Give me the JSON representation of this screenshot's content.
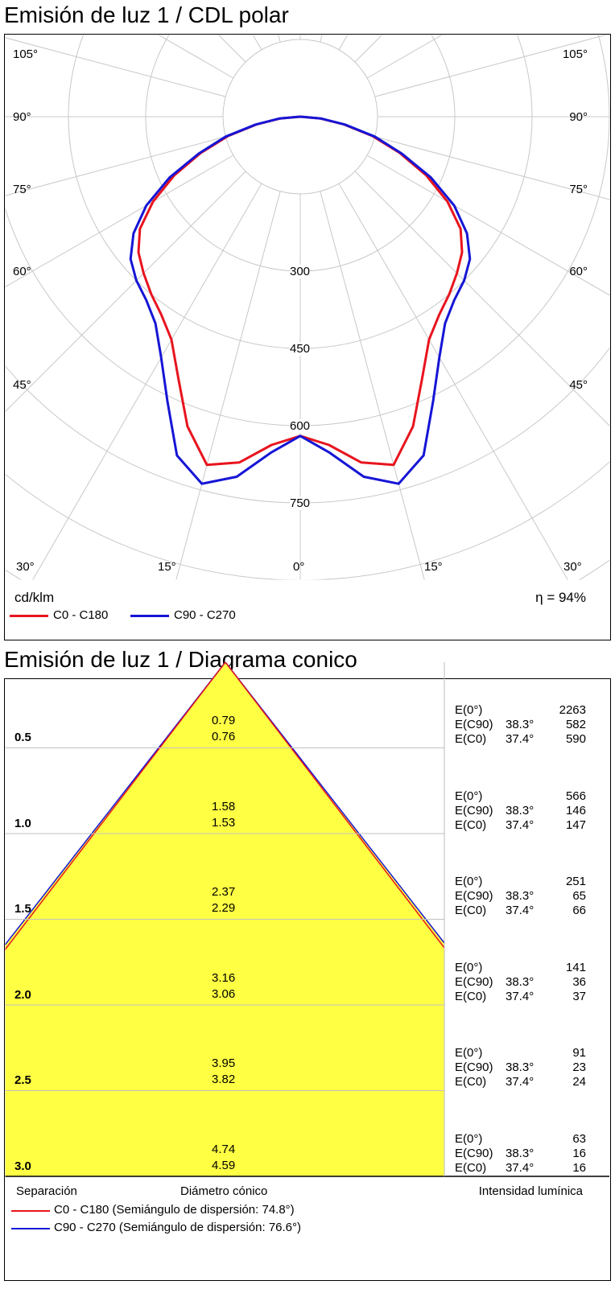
{
  "polar": {
    "title": "Emisión de luz 1 / CDL polar",
    "unit": "cd/klm",
    "efficiency": "η = 94%",
    "angle_labels_left": [
      "105°",
      "90°",
      "75°",
      "60°",
      "45°",
      "30°",
      "15°"
    ],
    "angle_labels_right": [
      "105°",
      "90°",
      "75°",
      "60°",
      "45°",
      "15°",
      "30°"
    ],
    "bottom_center_label": "0°",
    "radial_labels": [
      "300",
      "450",
      "600",
      "750"
    ],
    "legend": [
      {
        "label": "C0 - C180",
        "color": "#e8141e"
      },
      {
        "label": "C90 - C270",
        "color": "#1515d6"
      }
    ]
  },
  "cone": {
    "title": "Emisión de luz 1 / Diagrama conico",
    "footer_left": "Separación",
    "footer_center": "Diámetro cónico",
    "footer_right": "Intensidad lumínica",
    "legend": [
      {
        "label": "C0 - C180 (Semiángulo de dispersión: 74.8°)",
        "color": "#e8141e"
      },
      {
        "label": "C90 - C270 (Semiángulo de dispersión: 76.6°)",
        "color": "#1515d6"
      }
    ],
    "fill_color": "#ffff44",
    "rows": [
      {
        "sep": "0.5",
        "d90": "0.79",
        "d0": "0.76",
        "e0_label": "E(0°)",
        "e0": "2263",
        "e90_label": "E(C90)",
        "a90": "38.3°",
        "e90": "582",
        "ec0_label": "E(C0)",
        "a0": "37.4°",
        "ec0": "590"
      },
      {
        "sep": "1.0",
        "d90": "1.58",
        "d0": "1.53",
        "e0_label": "E(0°)",
        "e0": "566",
        "e90_label": "E(C90)",
        "a90": "38.3°",
        "e90": "146",
        "ec0_label": "E(C0)",
        "a0": "37.4°",
        "ec0": "147"
      },
      {
        "sep": "1.5",
        "d90": "2.37",
        "d0": "2.29",
        "e0_label": "E(0°)",
        "e0": "251",
        "e90_label": "E(C90)",
        "a90": "38.3°",
        "e90": "65",
        "ec0_label": "E(C0)",
        "a0": "37.4°",
        "ec0": "66"
      },
      {
        "sep": "2.0",
        "d90": "3.16",
        "d0": "3.06",
        "e0_label": "E(0°)",
        "e0": "141",
        "e90_label": "E(C90)",
        "a90": "38.3°",
        "e90": "36",
        "ec0_label": "E(C0)",
        "a0": "37.4°",
        "ec0": "37"
      },
      {
        "sep": "2.5",
        "d90": "3.95",
        "d0": "3.82",
        "e0_label": "E(0°)",
        "e0": "91",
        "e90_label": "E(C90)",
        "a90": "38.3°",
        "e90": "23",
        "ec0_label": "E(C0)",
        "a0": "37.4°",
        "ec0": "24"
      },
      {
        "sep": "3.0",
        "d90": "4.74",
        "d0": "4.59",
        "e0_label": "E(0°)",
        "e0": "63",
        "e90_label": "E(C90)",
        "a90": "38.3°",
        "e90": "16",
        "ec0_label": "E(C0)",
        "a0": "37.4°",
        "ec0": "16"
      }
    ]
  },
  "chart_data": [
    {
      "type": "polar",
      "title": "Emisión de luz 1 / CDL polar",
      "rlabel": "cd/klm",
      "r_ticks": [
        300,
        450,
        600,
        750
      ],
      "angle_ticks_deg": [
        0,
        15,
        30,
        45,
        60,
        75,
        90,
        105
      ],
      "series": [
        {
          "name": "C0 - C180",
          "color": "#e8141e",
          "angles_deg": [
            0,
            5,
            10,
            15,
            20,
            25,
            30,
            35,
            40,
            45,
            50,
            55,
            60,
            65,
            70,
            75,
            80,
            85,
            90
          ],
          "values": [
            620,
            640,
            682,
            700,
            640,
            560,
            500,
            470,
            450,
            430,
            410,
            380,
            330,
            270,
            205,
            145,
            85,
            38,
            0
          ]
        },
        {
          "name": "C90 - C270",
          "color": "#1515d6",
          "angles_deg": [
            0,
            5,
            10,
            15,
            20,
            25,
            30,
            35,
            40,
            45,
            50,
            55,
            60,
            65,
            70,
            75,
            80,
            85,
            90
          ],
          "values": [
            620,
            655,
            710,
            738,
            700,
            610,
            540,
            490,
            465,
            450,
            430,
            395,
            345,
            280,
            210,
            150,
            88,
            40,
            0
          ]
        }
      ],
      "annotation": "η = 94%"
    },
    {
      "type": "table",
      "title": "Emisión de luz 1 / Diagrama conico",
      "columns": [
        "Separación",
        "Diámetro cónico C90",
        "Diámetro cónico C0",
        "E(0°)",
        "E(C90) 38.3°",
        "E(C0) 37.4°"
      ],
      "rows": [
        [
          "0.5",
          "0.79",
          "0.76",
          2263,
          582,
          590
        ],
        [
          "1.0",
          "1.58",
          "1.53",
          566,
          146,
          147
        ],
        [
          "1.5",
          "2.37",
          "2.29",
          251,
          65,
          66
        ],
        [
          "2.0",
          "3.16",
          "3.06",
          141,
          36,
          37
        ],
        [
          "2.5",
          "3.95",
          "3.82",
          91,
          23,
          24
        ],
        [
          "3.0",
          "4.74",
          "4.59",
          63,
          16,
          16
        ]
      ],
      "half_angles_deg": {
        "C0 - C180": 74.8,
        "C90 - C270": 76.6
      }
    }
  ]
}
